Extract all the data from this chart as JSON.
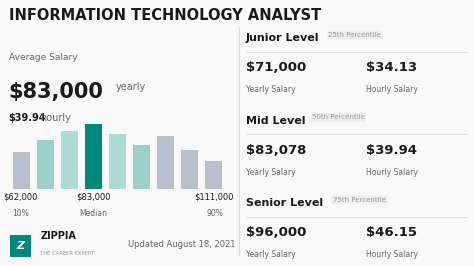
{
  "title": "INFORMATION TECHNOLOGY ANALYST",
  "bg_color": "#f9f9f9",
  "left_panel": {
    "avg_salary_label": "Average Salary",
    "avg_yearly": "$83,000",
    "avg_yearly_label": "yearly",
    "avg_hourly": "$39.94",
    "avg_hourly_label": "hourly",
    "bar_values": [
      0.52,
      0.7,
      0.82,
      0.92,
      0.78,
      0.62,
      0.75,
      0.55,
      0.4
    ],
    "bar_colors": [
      "#b8bfcf",
      "#9ecfca",
      "#aedbd5",
      "#00897b",
      "#aedbd5",
      "#9ecfca",
      "#b8bfcf",
      "#b8bfcf",
      "#b8bfcf"
    ],
    "footer_date": "Updated August 18, 2021"
  },
  "right_panel": {
    "sections": [
      {
        "level": "Junior Level",
        "percentile": "25th Percentile",
        "yearly": "$71,000",
        "yearly_label": "Yearly Salary",
        "hourly": "$34.13",
        "hourly_label": "Hourly Salary"
      },
      {
        "level": "Mid Level",
        "percentile": "50th Percentile",
        "yearly": "$83,078",
        "yearly_label": "Yearly Salary",
        "hourly": "$39.94",
        "hourly_label": "Hourly Salary"
      },
      {
        "level": "Senior Level",
        "percentile": "75th Percentile",
        "yearly": "$96,000",
        "yearly_label": "Yearly Salary",
        "hourly": "$46.15",
        "hourly_label": "Hourly Salary"
      }
    ]
  },
  "text_dark": "#1a1a1a",
  "text_mid": "#666666",
  "text_light": "#999999",
  "accent_teal": "#00897b",
  "divider_color": "#dddddd",
  "title_fontsize": 10.5,
  "bar_label_positions": [
    {
      "xi": 0,
      "price": "$62,000",
      "pct": "10%"
    },
    {
      "xi": 3,
      "price": "$83,000",
      "pct": "Median"
    },
    {
      "xi": 8,
      "price": "$111,000",
      "pct": "90%"
    }
  ]
}
